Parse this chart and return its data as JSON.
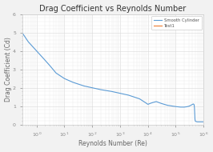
{
  "title": "Drag Coefficient vs Reynolds Number",
  "xlabel": "Reynolds Number (Re)",
  "ylabel": "Drag Coefficient (Cd)",
  "background_color": "#f2f2f2",
  "plot_bg_color": "#ffffff",
  "line_color": "#5b9bd5",
  "line2_color": "#ed7d31",
  "legend_labels": [
    "Smooth Cylinder",
    "Test1"
  ],
  "re_data": [
    0.3,
    0.5,
    1,
    2,
    3,
    5,
    10,
    20,
    50,
    100,
    200,
    500,
    1000,
    2000,
    5000,
    8000,
    10000,
    12000,
    15000,
    20000,
    30000,
    50000,
    80000,
    100000,
    150000,
    200000,
    250000,
    300000,
    350000,
    400000,
    430000,
    450000,
    460000,
    470000,
    480000,
    490000,
    500000,
    520000,
    550000,
    600000,
    700000,
    800000,
    1000000
  ],
  "cd_data": [
    5.0,
    4.5,
    4.0,
    3.5,
    3.2,
    2.8,
    2.5,
    2.3,
    2.1,
    2.0,
    1.9,
    1.8,
    1.7,
    1.6,
    1.4,
    1.2,
    1.1,
    1.15,
    1.2,
    1.25,
    1.15,
    1.05,
    1.0,
    0.98,
    0.95,
    0.95,
    0.97,
    1.0,
    1.05,
    1.1,
    1.12,
    1.1,
    1.05,
    0.9,
    0.6,
    0.3,
    0.2,
    0.18,
    0.16,
    0.15,
    0.15,
    0.15,
    0.15
  ],
  "xlim": [
    0.3,
    1000000
  ],
  "ylim": [
    0.0,
    6.0
  ],
  "yticks": [
    1,
    2,
    3,
    4,
    5
  ],
  "title_fontsize": 7,
  "label_fontsize": 5.5,
  "tick_fontsize": 4.5
}
